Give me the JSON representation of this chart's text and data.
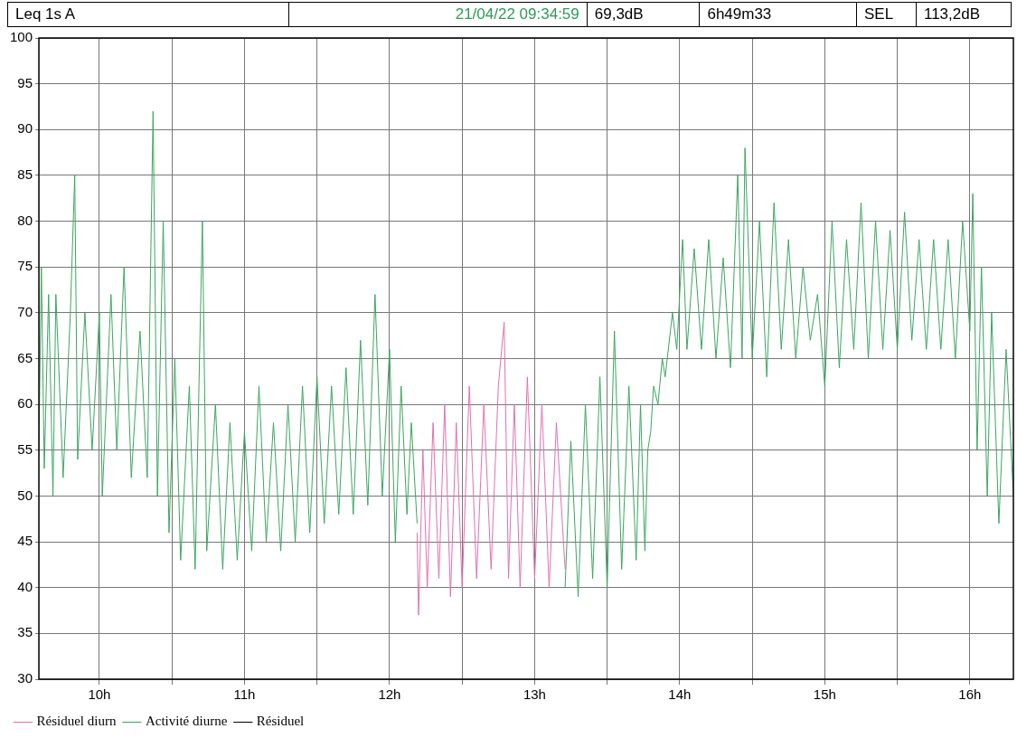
{
  "chart_data": {
    "type": "line",
    "title": "Leq 1s A",
    "annotations": [
      "21/04/22 09:34:59",
      "69,3dB",
      "6h49m33",
      "SEL",
      "113,2dB"
    ],
    "xlim": [
      9.583,
      16.3
    ],
    "xticks": [
      {
        "value": 10,
        "label": "10h"
      },
      {
        "value": 10.5,
        "label": null
      },
      {
        "value": 11,
        "label": "11h"
      },
      {
        "value": 11.5,
        "label": null
      },
      {
        "value": 12,
        "label": "12h"
      },
      {
        "value": 12.5,
        "label": null
      },
      {
        "value": 13,
        "label": "13h"
      },
      {
        "value": 13.5,
        "label": null
      },
      {
        "value": 14,
        "label": "14h"
      },
      {
        "value": 14.5,
        "label": null
      },
      {
        "value": 15,
        "label": "15h"
      },
      {
        "value": 15.5,
        "label": null
      },
      {
        "value": 16,
        "label": "16h"
      }
    ],
    "ylim": [
      30,
      100
    ],
    "yticks": [
      30,
      35,
      40,
      45,
      50,
      55,
      60,
      65,
      70,
      75,
      80,
      85,
      90,
      95,
      100
    ],
    "grid": true,
    "legend": "bottom left",
    "marker": "none",
    "line_style": "solid",
    "series": [
      {
        "name": "Résiduel diurn",
        "color": "#e46fae",
        "x": [
          12.19,
          12.2,
          12.23,
          12.26,
          12.3,
          12.34,
          12.38,
          12.42,
          12.46,
          12.5,
          12.55,
          12.6,
          12.65,
          12.7,
          12.75,
          12.79,
          12.82,
          12.86,
          12.9,
          12.95,
          13.0,
          13.05,
          13.1,
          13.15,
          13.21
        ],
        "values": [
          46,
          37,
          55,
          40,
          58,
          41,
          60,
          39,
          58,
          40,
          62,
          41,
          60,
          42,
          62,
          69,
          41,
          60,
          40,
          63,
          41,
          60,
          40,
          58,
          42
        ]
      },
      {
        "name": "Activité diurne",
        "color": "#3aa660",
        "x": [
          9.583,
          9.6,
          9.62,
          9.65,
          9.68,
          9.7,
          9.75,
          9.8,
          9.83,
          9.85,
          9.9,
          9.95,
          10.0,
          10.02,
          10.08,
          10.12,
          10.17,
          10.22,
          10.28,
          10.33,
          10.37,
          10.4,
          10.44,
          10.48,
          10.52,
          10.56,
          10.62,
          10.66,
          10.71,
          10.74,
          10.8,
          10.85,
          10.9,
          10.95,
          11.0,
          11.05,
          11.1,
          11.15,
          11.2,
          11.25,
          11.3,
          11.35,
          11.4,
          11.45,
          11.5,
          11.55,
          11.6,
          11.65,
          11.7,
          11.75,
          11.8,
          11.85,
          11.9,
          11.95,
          12.0,
          12.04,
          12.08,
          12.12,
          12.15,
          12.19,
          12.2,
          13.21,
          13.25,
          13.3,
          13.35,
          13.4,
          13.45,
          13.5,
          13.55,
          13.6,
          13.65,
          13.7,
          13.73,
          13.76,
          13.78,
          13.8,
          13.82,
          13.85,
          13.88,
          13.9,
          13.95,
          13.98,
          14.02,
          14.05,
          14.1,
          14.15,
          14.2,
          14.25,
          14.3,
          14.35,
          14.4,
          14.43,
          14.45,
          14.5,
          14.55,
          14.6,
          14.65,
          14.7,
          14.75,
          14.8,
          14.85,
          14.9,
          14.95,
          15.0,
          15.05,
          15.1,
          15.15,
          15.2,
          15.25,
          15.3,
          15.35,
          15.4,
          15.45,
          15.5,
          15.55,
          15.6,
          15.65,
          15.7,
          15.75,
          15.8,
          15.85,
          15.9,
          15.95,
          16.0,
          16.02,
          16.05,
          16.08,
          16.12,
          16.15,
          16.2,
          16.25,
          16.3
        ],
        "values": [
          55,
          75,
          53,
          72,
          50,
          72,
          52,
          70,
          85,
          54,
          70,
          55,
          70,
          50,
          72,
          55,
          75,
          52,
          68,
          52,
          92,
          50,
          80,
          46,
          65,
          43,
          62,
          42,
          80,
          44,
          60,
          42,
          58,
          43,
          57,
          44,
          62,
          45,
          58,
          44,
          60,
          45,
          62,
          46,
          63,
          47,
          62,
          48,
          64,
          48,
          67,
          49,
          72,
          50,
          66,
          45,
          62,
          48,
          58,
          47,
          null,
          40,
          56,
          39,
          60,
          41,
          63,
          40,
          68,
          42,
          62,
          43,
          60,
          44,
          55,
          57,
          62,
          60,
          65,
          63,
          70,
          66,
          78,
          66,
          77,
          66,
          78,
          65,
          76,
          64,
          85,
          65,
          88,
          65,
          80,
          63,
          82,
          66,
          78,
          65,
          75,
          67,
          72,
          62,
          80,
          64,
          78,
          66,
          82,
          65,
          80,
          66,
          79,
          66,
          81,
          67,
          78,
          66,
          78,
          66,
          78,
          65,
          80,
          68,
          83,
          55,
          75,
          50,
          70,
          47,
          66,
          50
        ]
      },
      {
        "name": "Résiduel",
        "color": "#000000"
      }
    ]
  }
}
